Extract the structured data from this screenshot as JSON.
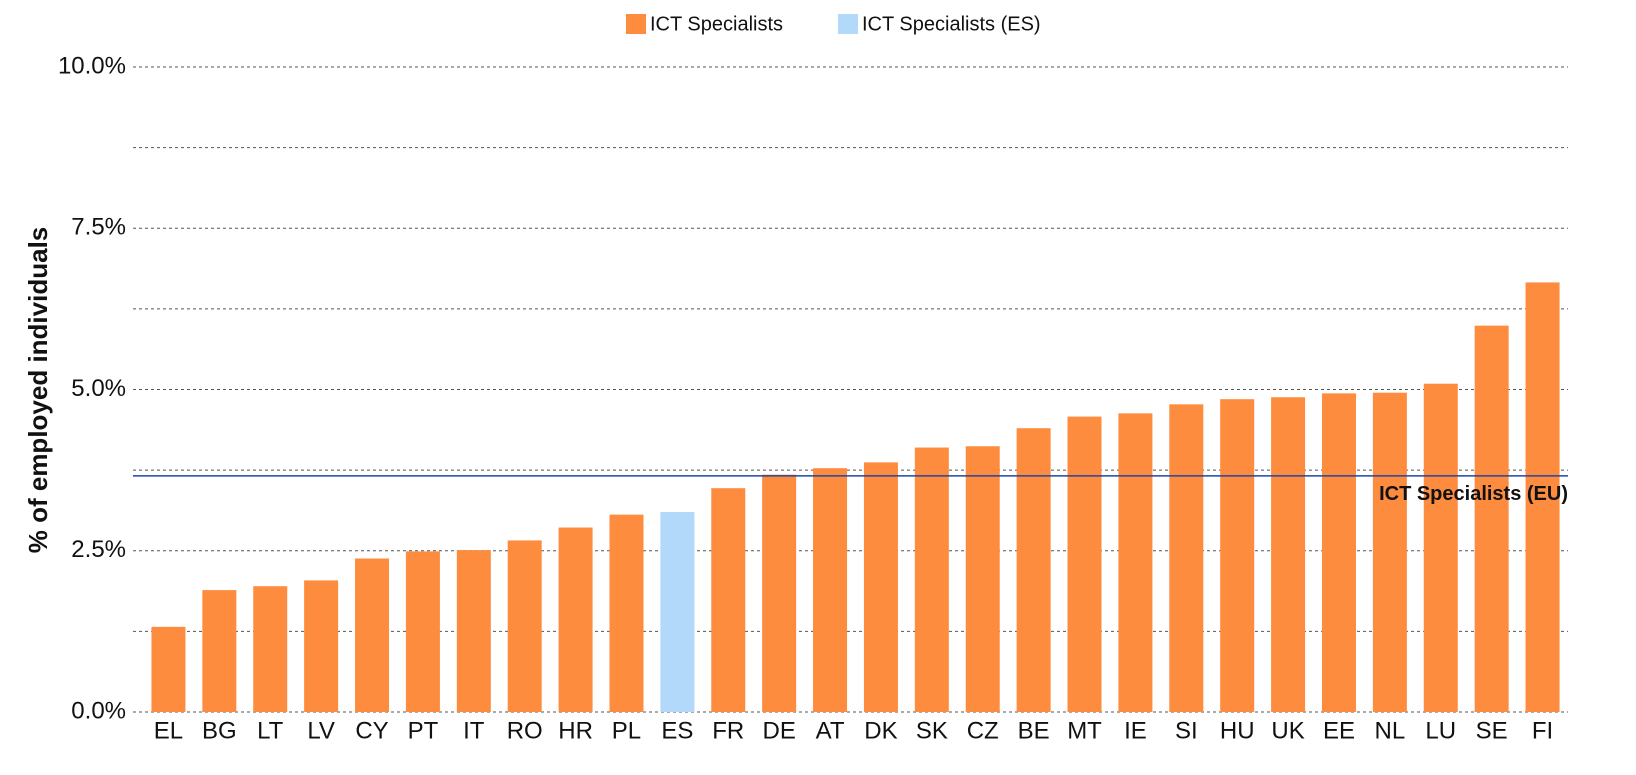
{
  "chart_data": {
    "type": "bar",
    "y_label": "% of employed individuals",
    "categories": [
      "EL",
      "BG",
      "LT",
      "LV",
      "CY",
      "PT",
      "IT",
      "RO",
      "HR",
      "PL",
      "ES",
      "FR",
      "DE",
      "AT",
      "DK",
      "SK",
      "CZ",
      "BE",
      "MT",
      "IE",
      "SI",
      "HU",
      "UK",
      "EE",
      "NL",
      "LU",
      "SE",
      "FI"
    ],
    "series": [
      {
        "name": "ICT Specialists",
        "color": "#fd8c3f",
        "values": [
          1.32,
          1.89,
          1.95,
          2.04,
          2.38,
          2.49,
          2.51,
          2.66,
          2.86,
          3.06,
          null,
          3.47,
          3.68,
          3.78,
          3.87,
          4.1,
          4.12,
          4.4,
          4.58,
          4.63,
          4.77,
          4.85,
          4.88,
          4.94,
          4.95,
          5.09,
          5.99,
          6.66
        ]
      },
      {
        "name": "ICT Specialists (ES)",
        "color": "#b3d9fa",
        "values": [
          null,
          null,
          null,
          null,
          null,
          null,
          null,
          null,
          null,
          null,
          3.1,
          null,
          null,
          null,
          null,
          null,
          null,
          null,
          null,
          null,
          null,
          null,
          null,
          null,
          null,
          null,
          null,
          null
        ]
      }
    ],
    "reference_line": {
      "label": "ICT Specialists (EU)",
      "value": 3.66,
      "color": "#1f45a8"
    },
    "ylim": [
      0,
      10
    ],
    "yticks": [
      {
        "value": 0,
        "label": "0.0%"
      },
      {
        "value": 2.5,
        "label": "2.5%"
      },
      {
        "value": 5,
        "label": "5.0%"
      },
      {
        "value": 7.5,
        "label": "7.5%"
      },
      {
        "value": 10,
        "label": "10.0%"
      }
    ],
    "yminorticks": [
      1.25,
      3.75,
      6.25,
      8.75
    ],
    "grid": true,
    "legend": "top"
  }
}
